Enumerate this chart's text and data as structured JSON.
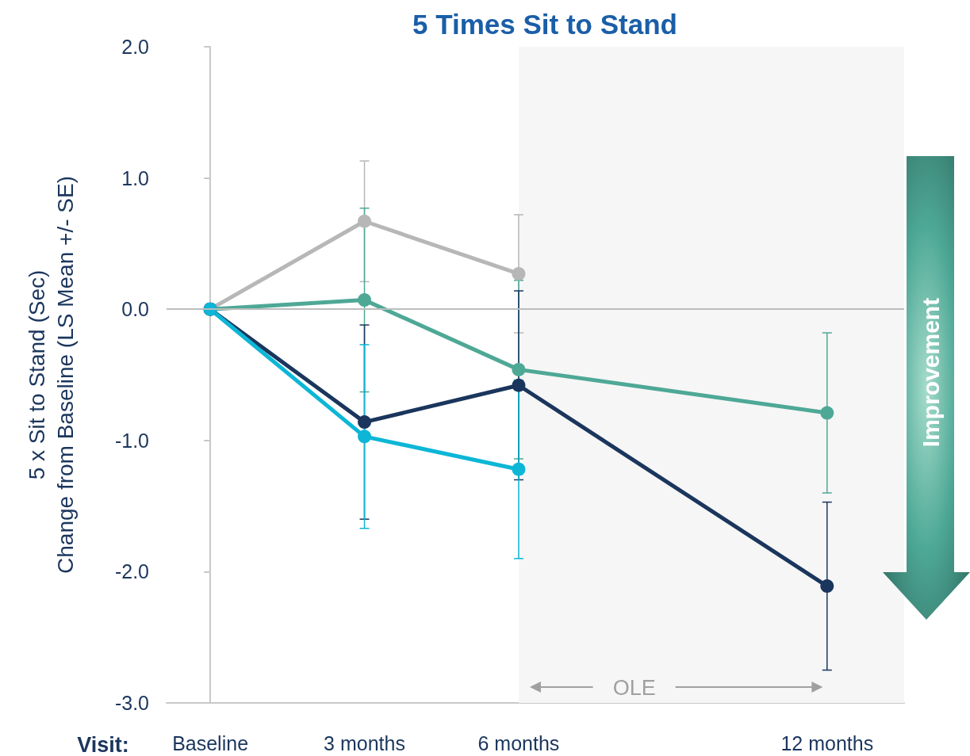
{
  "chart_data": {
    "type": "line",
    "title": "5 Times Sit to Stand",
    "ylabel": "5 x Sit to Stand (Sec)\nChange from Baseline (LS Mean +/- SE)",
    "x": [
      0,
      3,
      6,
      12
    ],
    "xlim": [
      -0.85,
      13.5
    ],
    "xticks": [
      {
        "value": 0,
        "label": "Baseline"
      },
      {
        "value": 3,
        "label": "3 months"
      },
      {
        "value": 6,
        "label": "6 months"
      },
      {
        "value": 12,
        "label": "12 months"
      }
    ],
    "ylim": [
      -3,
      2
    ],
    "yticks": [
      {
        "value": -3,
        "label": "-3.0"
      },
      {
        "value": -2,
        "label": "-2.0"
      },
      {
        "value": -1,
        "label": "-1.0"
      },
      {
        "value": 0,
        "label": "0.0"
      },
      {
        "value": 1,
        "label": "1.0"
      },
      {
        "value": 2,
        "label": "2.0"
      }
    ],
    "marker": "circle",
    "line_style": "solid",
    "series": [
      {
        "color": "#b7b7b7",
        "values": [
          0,
          0.67,
          0.27,
          null
        ],
        "errors": [
          null,
          0.46,
          0.45,
          null
        ]
      },
      {
        "color": "#4ea896",
        "values": [
          0,
          0.07,
          -0.46,
          -0.79
        ],
        "errors": [
          null,
          0.7,
          0.68,
          0.61
        ]
      },
      {
        "color": "#1b365d",
        "values": [
          0,
          -0.86,
          -0.58,
          -2.11
        ],
        "errors": [
          null,
          0.74,
          0.72,
          0.64
        ]
      },
      {
        "color": "#0db6d6",
        "values": [
          0,
          -0.97,
          -1.22,
          null
        ],
        "errors": [
          null,
          0.7,
          0.68,
          null
        ]
      }
    ],
    "ref_lines": [
      {
        "axis": "y",
        "value": 0,
        "color": "#bdbdbd"
      }
    ],
    "bands": [
      {
        "axis": "x",
        "from": 6,
        "to": 13.5,
        "label": "OLE",
        "color": "#f6f6f6"
      }
    ],
    "annotations": [
      "Visit:",
      "Improvement"
    ]
  }
}
